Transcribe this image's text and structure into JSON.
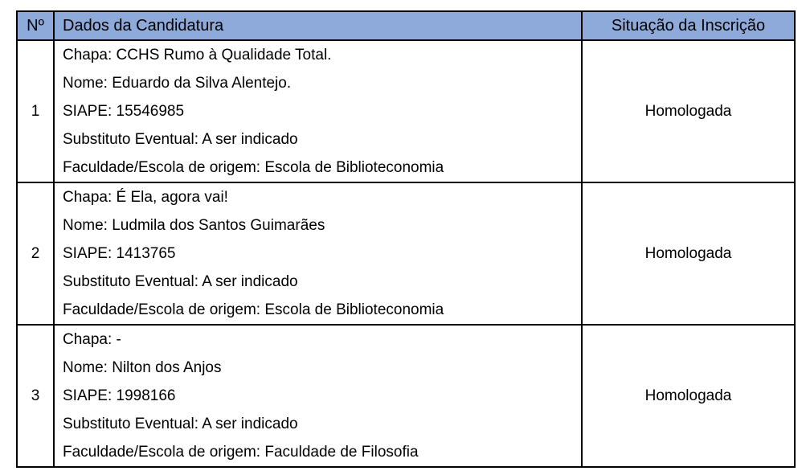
{
  "table": {
    "headers": {
      "number": "Nº",
      "data": "Dados da Candidatura",
      "status": "Situação da Inscrição"
    },
    "rows": [
      {
        "number": "1",
        "lines": [
          "Chapa: CCHS Rumo à Qualidade Total.",
          "Nome: Eduardo da Silva Alentejo.",
          "SIAPE: 15546985",
          "Substituto Eventual: A ser indicado",
          "Faculdade/Escola de origem: Escola de Biblioteconomia"
        ],
        "status": "Homologada"
      },
      {
        "number": "2",
        "lines": [
          "Chapa: É Ela, agora vai!",
          "Nome: Ludmila dos Santos Guimarães",
          "SIAPE: 1413765",
          "Substituto Eventual: A ser indicado",
          "Faculdade/Escola de origem: Escola de Biblioteconomia"
        ],
        "status": "Homologada"
      },
      {
        "number": "3",
        "lines": [
          "Chapa: -",
          "Nome: Nilton dos Anjos",
          "SIAPE: 1998166",
          "Substituto Eventual: A ser indicado",
          "Faculdade/Escola de origem: Faculdade de Filosofia"
        ],
        "status": "Homologada"
      }
    ],
    "colors": {
      "header_bg": "#8EAADB",
      "border": "#000000",
      "text": "#000000"
    }
  }
}
